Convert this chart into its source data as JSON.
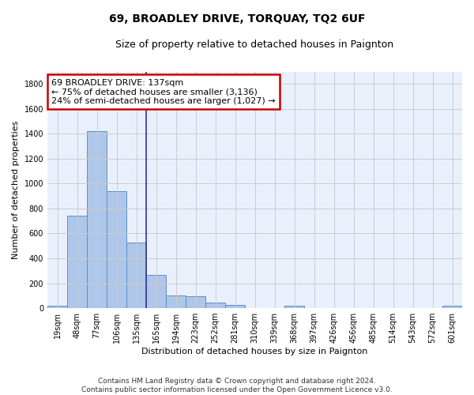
{
  "title": "69, BROADLEY DRIVE, TORQUAY, TQ2 6UF",
  "subtitle": "Size of property relative to detached houses in Paignton",
  "xlabel": "Distribution of detached houses by size in Paignton",
  "ylabel": "Number of detached properties",
  "footer_line1": "Contains HM Land Registry data © Crown copyright and database right 2024.",
  "footer_line2": "Contains public sector information licensed under the Open Government Licence v3.0.",
  "bar_labels": [
    "19sqm",
    "48sqm",
    "77sqm",
    "106sqm",
    "135sqm",
    "165sqm",
    "194sqm",
    "223sqm",
    "252sqm",
    "281sqm",
    "310sqm",
    "339sqm",
    "368sqm",
    "397sqm",
    "426sqm",
    "456sqm",
    "485sqm",
    "514sqm",
    "543sqm",
    "572sqm",
    "601sqm"
  ],
  "bar_values": [
    22,
    745,
    1420,
    940,
    530,
    265,
    105,
    93,
    43,
    28,
    0,
    0,
    18,
    0,
    0,
    0,
    0,
    0,
    0,
    0,
    18
  ],
  "bar_color": "#aec6e8",
  "bar_edge_color": "#5b8fc9",
  "annotation_line1": "69 BROADLEY DRIVE: 137sqm",
  "annotation_line2": "← 75% of detached houses are smaller (3,136)",
  "annotation_line3": "24% of semi-detached houses are larger (1,027) →",
  "annotation_box_color": "#ffffff",
  "annotation_box_edge_color": "#cc0000",
  "vline_bin_index": 4,
  "vline_color": "#333399",
  "ylim": [
    0,
    1900
  ],
  "yticks": [
    0,
    200,
    400,
    600,
    800,
    1000,
    1200,
    1400,
    1600,
    1800
  ],
  "grid_color": "#cccccc",
  "bg_color": "#eaf0fb",
  "title_fontsize": 10,
  "subtitle_fontsize": 9,
  "tick_fontsize": 7,
  "ylabel_fontsize": 8,
  "xlabel_fontsize": 8,
  "annotation_fontsize": 8,
  "footer_fontsize": 6.5
}
